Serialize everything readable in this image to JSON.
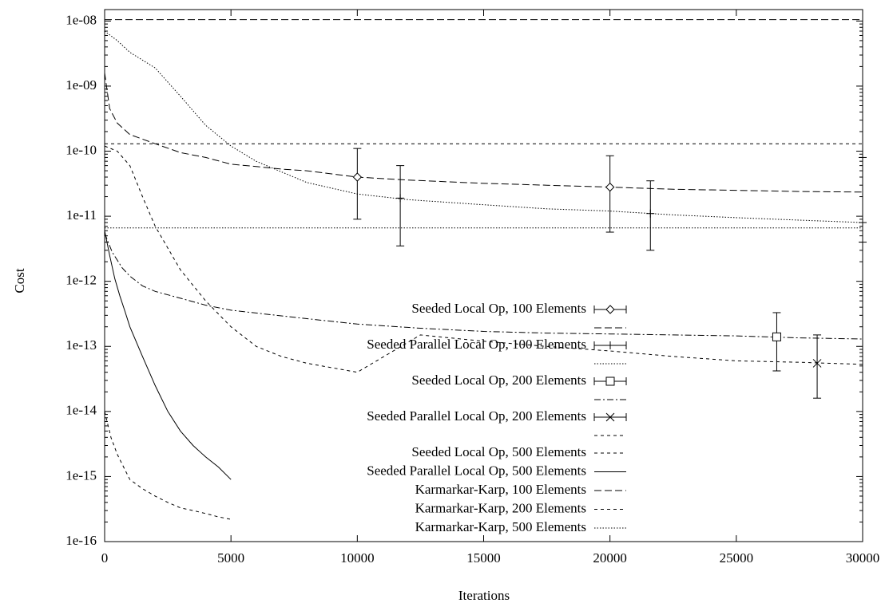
{
  "chart_data": {
    "type": "line",
    "title": "",
    "xlabel": "Iterations",
    "ylabel": "Cost",
    "xscale": "linear",
    "yscale": "log",
    "xlim": [
      0,
      30000
    ],
    "ylim": [
      1e-16,
      1.5e-08
    ],
    "xticks": [
      {
        "value": 0,
        "label": "0"
      },
      {
        "value": 5000,
        "label": "5000"
      },
      {
        "value": 10000,
        "label": "10000"
      },
      {
        "value": 15000,
        "label": "15000"
      },
      {
        "value": 20000,
        "label": "20000"
      },
      {
        "value": 25000,
        "label": "25000"
      },
      {
        "value": 30000,
        "label": "30000"
      }
    ],
    "yticks": [
      {
        "value": 1e-16,
        "label": "1e-16"
      },
      {
        "value": 1e-15,
        "label": "1e-15"
      },
      {
        "value": 1e-14,
        "label": "1e-14"
      },
      {
        "value": 1e-13,
        "label": "1e-13"
      },
      {
        "value": 1e-12,
        "label": "1e-12"
      },
      {
        "value": 1e-11,
        "label": "1e-11"
      },
      {
        "value": 1e-10,
        "label": "1e-10"
      },
      {
        "value": 1e-09,
        "label": "1e-09"
      },
      {
        "value": 1e-08,
        "label": "1e-08"
      }
    ],
    "grid": false,
    "legend_position": "center-right",
    "series": [
      {
        "name": "Seeded Local Op, 100 Elements",
        "style": "dashed-long",
        "marker": "diamond",
        "errorbars": true,
        "x": [
          0,
          200,
          500,
          1000,
          2000,
          3000,
          4000,
          5000,
          6000,
          7000,
          8000,
          10000,
          12000,
          15000,
          17500,
          20000,
          22500,
          25000,
          27500,
          30000
        ],
        "y": [
          1.6e-09,
          4.5e-10,
          2.7e-10,
          1.8e-10,
          1.3e-10,
          9.5e-11,
          8e-11,
          6.3e-11,
          5.8e-11,
          5.3e-11,
          5e-11,
          4e-11,
          3.6e-11,
          3.2e-11,
          3e-11,
          2.8e-11,
          2.6e-11,
          2.5e-11,
          2.4e-11,
          2.35e-11
        ],
        "error_points": [
          {
            "x": 10000,
            "y": 4e-11,
            "low": 9e-12,
            "high": 1.1e-10
          },
          {
            "x": 20000,
            "y": 2.8e-11,
            "low": 5.7e-12,
            "high": 8.5e-11
          }
        ]
      },
      {
        "name": "Seeded Parallel Local Op, 100 Elements",
        "style": "dotted-fine",
        "marker": "plus",
        "errorbars": true,
        "x": [
          0,
          500,
          1000,
          2000,
          3000,
          4000,
          5000,
          6000,
          7000,
          8000,
          10000,
          12000,
          15000,
          17500,
          20000,
          22500,
          25000,
          27500,
          30000
        ],
        "y": [
          7e-09,
          5e-09,
          3.3e-09,
          1.9e-09,
          7e-10,
          2.5e-10,
          1.2e-10,
          7e-11,
          4.8e-11,
          3.3e-11,
          2.2e-11,
          1.8e-11,
          1.5e-11,
          1.3e-11,
          1.2e-11,
          1.05e-11,
          9.5e-12,
          8.7e-12,
          8e-12
        ],
        "error_points": [
          {
            "x": 11700,
            "y": 1.9e-11,
            "low": 3.5e-12,
            "high": 6e-11
          },
          {
            "x": 21600,
            "y": 1.1e-11,
            "low": 3e-12,
            "high": 3.5e-11
          },
          {
            "x": 30000,
            "y": 8e-12,
            "low": 4e-12,
            "high": 8e-11
          }
        ]
      },
      {
        "name": "Seeded Local Op, 200 Elements",
        "style": "dash-dot",
        "marker": "square",
        "errorbars": true,
        "x": [
          0,
          300,
          700,
          1000,
          1500,
          2000,
          3000,
          4000,
          5000,
          7500,
          10000,
          12500,
          15000,
          17500,
          20000,
          22500,
          25000,
          27500,
          30000
        ],
        "y": [
          5.5e-12,
          2.8e-12,
          1.6e-12,
          1.2e-12,
          8.5e-13,
          7e-13,
          5.5e-13,
          4.3e-13,
          3.6e-13,
          2.8e-13,
          2.2e-13,
          1.9e-13,
          1.7e-13,
          1.6e-13,
          1.55e-13,
          1.5e-13,
          1.45e-13,
          1.35e-13,
          1.3e-13
        ],
        "error_points": [
          {
            "x": 26600,
            "y": 1.4e-13,
            "low": 4.2e-14,
            "high": 3.3e-13
          }
        ]
      },
      {
        "name": "Seeded Parallel Local Op, 200 Elements",
        "style": "dashed-short",
        "marker": "cross",
        "errorbars": true,
        "x": [
          0,
          500,
          1000,
          1500,
          2000,
          3000,
          4000,
          5000,
          6000,
          7000,
          8000,
          10000,
          12500,
          15000,
          17500,
          20000,
          22500,
          25000,
          27500,
          30000
        ],
        "y": [
          1.2e-10,
          1e-10,
          6e-11,
          2e-11,
          7e-12,
          1.5e-12,
          5e-13,
          2e-13,
          1e-13,
          7e-14,
          5.5e-14,
          4e-14,
          1.5e-13,
          1.2e-13,
          1e-13,
          8.5e-14,
          7e-14,
          6e-14,
          5.7e-14,
          5.3e-14
        ],
        "error_points": [
          {
            "x": 28200,
            "y": 5.5e-14,
            "low": 1.6e-14,
            "high": 1.5e-13
          }
        ]
      },
      {
        "name": "Seeded Local Op, 500 Elements",
        "style": "dashed-short",
        "marker": "none",
        "errorbars": false,
        "x": [
          0,
          250,
          500,
          750,
          1000,
          1500,
          2000,
          2500,
          3000,
          3500,
          4000,
          4500,
          5000
        ],
        "y": [
          1e-14,
          4e-15,
          2.2e-15,
          1.4e-15,
          9e-16,
          6.5e-16,
          5e-16,
          4e-16,
          3.3e-16,
          3e-16,
          2.7e-16,
          2.4e-16,
          2.2e-16
        ]
      },
      {
        "name": "Seeded Parallel Local Op, 500 Elements",
        "style": "solid",
        "marker": "none",
        "errorbars": false,
        "x": [
          0,
          200,
          400,
          600,
          800,
          1000,
          1500,
          2000,
          2500,
          3000,
          3500,
          4000,
          4500,
          5000
        ],
        "y": [
          6e-12,
          2.5e-12,
          1.1e-12,
          6e-13,
          3.5e-13,
          2e-13,
          7e-14,
          2.5e-14,
          1e-14,
          5e-15,
          3e-15,
          2e-15,
          1.4e-15,
          9e-16
        ]
      },
      {
        "name": "Karmarkar-Karp, 100 Elements",
        "style": "dashed-long",
        "marker": "none",
        "errorbars": false,
        "x": [
          0,
          30000
        ],
        "y": [
          1.05e-08,
          1.05e-08
        ]
      },
      {
        "name": "Karmarkar-Karp, 200 Elements",
        "style": "dashed-short",
        "marker": "none",
        "errorbars": false,
        "x": [
          0,
          30000
        ],
        "y": [
          1.3e-10,
          1.3e-10
        ]
      },
      {
        "name": "Karmarkar-Karp, 500 Elements",
        "style": "dotted-fine",
        "marker": "none",
        "errorbars": false,
        "x": [
          0,
          30000
        ],
        "y": [
          6.6e-12,
          6.6e-12
        ]
      }
    ]
  }
}
